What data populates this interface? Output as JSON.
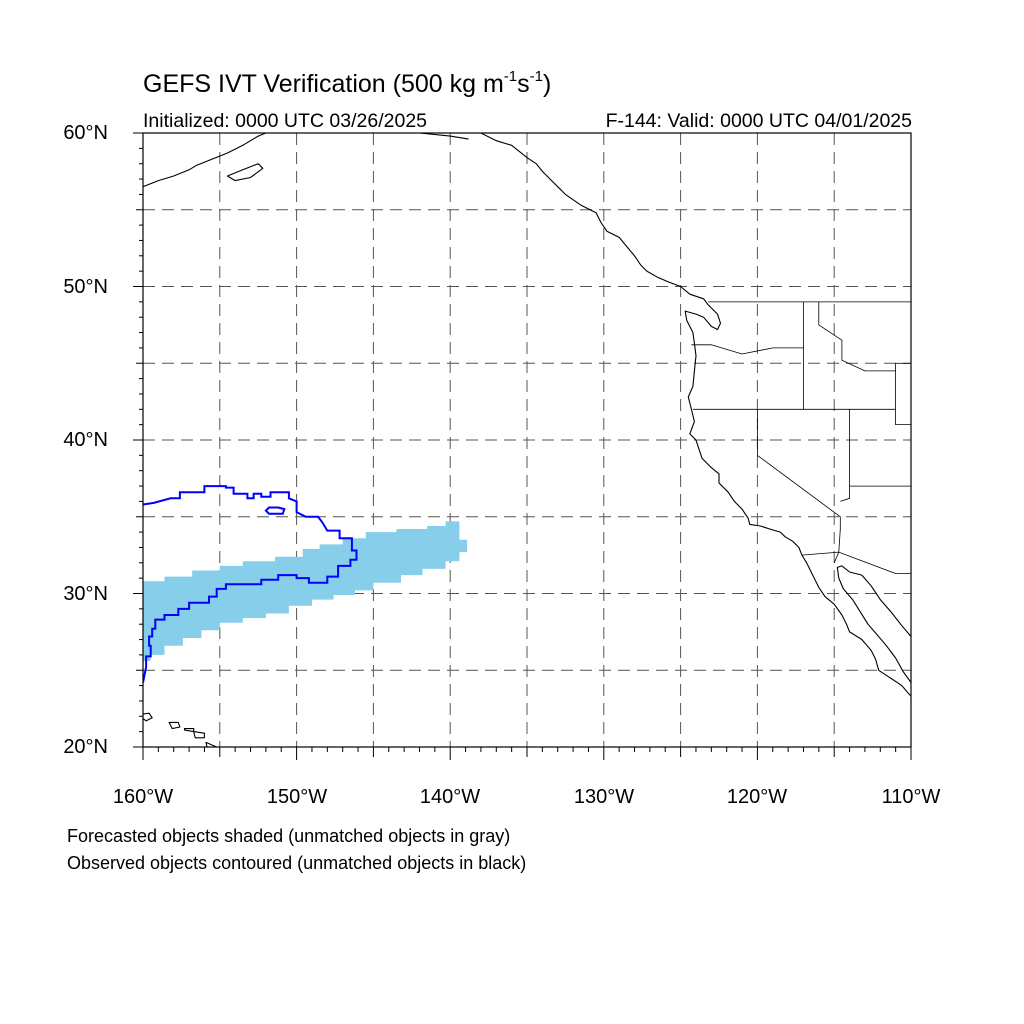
{
  "title": {
    "main": "GEFS IVT Verification (500 kg m",
    "exp1": "-1",
    "mid": "s",
    "exp2": "-1",
    "end": ")"
  },
  "initialized": "Initialized: 0000 UTC 03/26/2025",
  "valid": "F-144: Valid: 0000 UTC 04/01/2025",
  "lat_labels": [
    "60°N",
    "50°N",
    "40°N",
    "30°N",
    "20°N"
  ],
  "lon_labels": [
    "160°W",
    "150°W",
    "140°W",
    "130°W",
    "120°W",
    "110°W"
  ],
  "captions": [
    "Forecasted objects shaded (unmatched objects in gray)",
    "Observed objects contoured (unmatched objects in black)"
  ],
  "map": {
    "lon_range": [
      -160,
      -110
    ],
    "lat_range": [
      20,
      60
    ],
    "grid_lons": [
      -155,
      -150,
      -145,
      -140,
      -135,
      -130,
      -125,
      -120,
      -115
    ],
    "grid_lats": [
      25,
      30,
      35,
      40,
      45,
      50,
      55
    ],
    "forecast_color": "#87ceeb",
    "observed_color": "#0000ff",
    "coast_color": "#000000",
    "forecast_object": [
      [
        -160,
        30.8
      ],
      [
        -158.6,
        30.8
      ],
      [
        -158.6,
        31.1
      ],
      [
        -156.8,
        31.1
      ],
      [
        -156.8,
        31.5
      ],
      [
        -155,
        31.5
      ],
      [
        -155,
        31.8
      ],
      [
        -153.5,
        31.8
      ],
      [
        -153.5,
        32.1
      ],
      [
        -151.4,
        32.1
      ],
      [
        -151.4,
        32.4
      ],
      [
        -149.6,
        32.4
      ],
      [
        -149.6,
        32.9
      ],
      [
        -148.5,
        32.9
      ],
      [
        -148.5,
        33.2
      ],
      [
        -147,
        33.2
      ],
      [
        -147,
        33.6
      ],
      [
        -145.5,
        33.6
      ],
      [
        -145.5,
        34.0
      ],
      [
        -143.5,
        34.0
      ],
      [
        -143.5,
        34.2
      ],
      [
        -141.5,
        34.2
      ],
      [
        -141.5,
        34.4
      ],
      [
        -140.3,
        34.4
      ],
      [
        -140.3,
        34.7
      ],
      [
        -139.4,
        34.7
      ],
      [
        -139.4,
        33.5
      ],
      [
        -138.9,
        33.5
      ],
      [
        -138.9,
        32.7
      ],
      [
        -139.4,
        32.7
      ],
      [
        -139.4,
        32.1
      ],
      [
        -140.3,
        32.1
      ],
      [
        -140.3,
        31.6
      ],
      [
        -141.8,
        31.6
      ],
      [
        -141.8,
        31.2
      ],
      [
        -143.2,
        31.2
      ],
      [
        -143.2,
        30.7
      ],
      [
        -145,
        30.7
      ],
      [
        -145,
        30.2
      ],
      [
        -146.2,
        30.2
      ],
      [
        -146.2,
        29.9
      ],
      [
        -147.6,
        29.9
      ],
      [
        -147.6,
        29.6
      ],
      [
        -149,
        29.6
      ],
      [
        -149,
        29.2
      ],
      [
        -150.5,
        29.2
      ],
      [
        -150.5,
        28.7
      ],
      [
        -152,
        28.7
      ],
      [
        -152,
        28.4
      ],
      [
        -153.5,
        28.4
      ],
      [
        -153.5,
        28.1
      ],
      [
        -155,
        28.1
      ],
      [
        -155,
        27.6
      ],
      [
        -156.2,
        27.6
      ],
      [
        -156.2,
        27.1
      ],
      [
        -157.4,
        27.1
      ],
      [
        -157.4,
        26.6
      ],
      [
        -158.6,
        26.6
      ],
      [
        -158.6,
        26.0
      ],
      [
        -159.5,
        26.0
      ],
      [
        -159.5,
        25.6
      ],
      [
        -160,
        25.6
      ]
    ],
    "observed_object": [
      [
        -160,
        35.8
      ],
      [
        -159.3,
        35.9
      ],
      [
        -158.2,
        36.2
      ],
      [
        -157.6,
        36.2
      ],
      [
        -157.6,
        36.6
      ],
      [
        -156,
        36.6
      ],
      [
        -156,
        37.0
      ],
      [
        -154.6,
        37.0
      ],
      [
        -154.6,
        36.9
      ],
      [
        -154.1,
        36.9
      ],
      [
        -154.1,
        36.5
      ],
      [
        -153.2,
        36.5
      ],
      [
        -153.2,
        36.2
      ],
      [
        -152.8,
        36.2
      ],
      [
        -152.8,
        36.5
      ],
      [
        -152.3,
        36.5
      ],
      [
        -152.3,
        36.3
      ],
      [
        -151.7,
        36.3
      ],
      [
        -151.7,
        36.6
      ],
      [
        -151,
        36.6
      ],
      [
        -150.5,
        36.6
      ],
      [
        -150.5,
        36.2
      ],
      [
        -150,
        36.0
      ],
      [
        -150,
        35.3
      ],
      [
        -149.4,
        35.0
      ],
      [
        -148.6,
        35.0
      ],
      [
        -148.3,
        34.6
      ],
      [
        -148,
        34.1
      ],
      [
        -147.2,
        34.1
      ],
      [
        -147.2,
        33.6
      ],
      [
        -146.4,
        33.6
      ],
      [
        -146.4,
        32.8
      ],
      [
        -146.1,
        32.8
      ],
      [
        -146.1,
        32.2
      ],
      [
        -146.5,
        32.2
      ],
      [
        -146.5,
        31.8
      ],
      [
        -147.3,
        31.8
      ],
      [
        -147.3,
        31.1
      ],
      [
        -148.0,
        31.1
      ],
      [
        -148.0,
        30.7
      ],
      [
        -149.2,
        30.7
      ],
      [
        -149.2,
        31.0
      ],
      [
        -150,
        31.0
      ],
      [
        -150,
        31.2
      ],
      [
        -151.2,
        31.2
      ],
      [
        -151.2,
        30.9
      ],
      [
        -152.3,
        30.9
      ],
      [
        -152.3,
        30.6
      ],
      [
        -154.6,
        30.6
      ],
      [
        -154.6,
        30.3
      ],
      [
        -155.2,
        30.3
      ],
      [
        -155.2,
        29.8
      ],
      [
        -155.7,
        29.8
      ],
      [
        -155.7,
        29.4
      ],
      [
        -157.0,
        29.4
      ],
      [
        -157.0,
        29.0
      ],
      [
        -157.7,
        29.0
      ],
      [
        -157.7,
        28.6
      ],
      [
        -158.6,
        28.6
      ],
      [
        -158.6,
        28.3
      ],
      [
        -159.2,
        28.3
      ],
      [
        -159.2,
        27.7
      ],
      [
        -159.4,
        27.7
      ],
      [
        -159.4,
        27.2
      ],
      [
        -159.6,
        27.2
      ],
      [
        -159.6,
        26.6
      ],
      [
        -159.5,
        26.6
      ],
      [
        -159.5,
        25.9
      ],
      [
        -159.8,
        25.9
      ],
      [
        -159.8,
        25.2
      ],
      [
        -160,
        24.2
      ]
    ],
    "observed_hole": [
      [
        -151.8,
        35.6
      ],
      [
        -151.2,
        35.6
      ],
      [
        -150.8,
        35.5
      ],
      [
        -150.9,
        35.2
      ],
      [
        -151.8,
        35.2
      ],
      [
        -152.0,
        35.4
      ]
    ],
    "coastline_north_america": [
      [
        -138,
        60
      ],
      [
        -137,
        59.5
      ],
      [
        -136,
        59.2
      ],
      [
        -135.5,
        58.8
      ],
      [
        -135,
        58.4
      ],
      [
        -134.4,
        58
      ],
      [
        -134,
        57.5
      ],
      [
        -133.5,
        57
      ],
      [
        -133,
        56.5
      ],
      [
        -132.5,
        56
      ],
      [
        -131.5,
        55.3
      ],
      [
        -130.5,
        54.8
      ],
      [
        -130.2,
        54.2
      ],
      [
        -129.8,
        53.6
      ],
      [
        -129,
        53.2
      ],
      [
        -128.5,
        52.6
      ],
      [
        -128,
        52
      ],
      [
        -127.6,
        51.4
      ],
      [
        -127.2,
        51
      ],
      [
        -126.5,
        50.6
      ],
      [
        -125.8,
        50.3
      ],
      [
        -125,
        50
      ],
      [
        -124.4,
        49.5
      ],
      [
        -123.5,
        49.2
      ],
      [
        -123.2,
        48.8
      ],
      [
        -122.6,
        48.2
      ],
      [
        -122.4,
        47.6
      ],
      [
        -122.6,
        47.2
      ],
      [
        -123.0,
        47.4
      ],
      [
        -123.5,
        48.0
      ],
      [
        -124.0,
        48.2
      ],
      [
        -124.7,
        48.4
      ],
      [
        -124.6,
        47.8
      ],
      [
        -124.2,
        47.0
      ],
      [
        -124.1,
        46.3
      ],
      [
        -124.0,
        45.5
      ],
      [
        -124.1,
        44.5
      ],
      [
        -124.2,
        43.5
      ],
      [
        -124.5,
        42.8
      ],
      [
        -124.3,
        42.0
      ],
      [
        -124.1,
        41.2
      ],
      [
        -124.4,
        40.4
      ],
      [
        -124.0,
        40.0
      ],
      [
        -123.8,
        39.4
      ],
      [
        -123.6,
        38.8
      ],
      [
        -123.0,
        38.2
      ],
      [
        -122.5,
        37.8
      ],
      [
        -122.5,
        37.2
      ],
      [
        -121.9,
        36.6
      ],
      [
        -121.5,
        36.0
      ],
      [
        -121.0,
        35.5
      ],
      [
        -120.6,
        34.9
      ],
      [
        -120.5,
        34.5
      ],
      [
        -119.8,
        34.4
      ],
      [
        -119.2,
        34.2
      ],
      [
        -118.5,
        34.0
      ],
      [
        -118.2,
        33.7
      ],
      [
        -117.7,
        33.4
      ],
      [
        -117.3,
        33.0
      ],
      [
        -117.1,
        32.5
      ],
      [
        -116.8,
        32.0
      ],
      [
        -116.6,
        31.6
      ],
      [
        -116.3,
        31.0
      ],
      [
        -116.0,
        30.4
      ],
      [
        -115.6,
        29.8
      ],
      [
        -115.0,
        29.3
      ],
      [
        -114.5,
        28.6
      ],
      [
        -114.2,
        28.0
      ],
      [
        -114.0,
        27.5
      ],
      [
        -113.2,
        27.0
      ],
      [
        -112.6,
        26.3
      ],
      [
        -112.3,
        25.7
      ],
      [
        -112.1,
        25.0
      ],
      [
        -111.5,
        24.6
      ],
      [
        -110.6,
        24.0
      ],
      [
        -110.0,
        23.3
      ]
    ],
    "coastline_baja_east": [
      [
        -110.0,
        24.2
      ],
      [
        -110.5,
        24.9
      ],
      [
        -111.0,
        25.8
      ],
      [
        -111.6,
        26.6
      ],
      [
        -112.2,
        27.3
      ],
      [
        -112.8,
        28.0
      ],
      [
        -113.3,
        28.8
      ],
      [
        -113.8,
        29.6
      ],
      [
        -114.4,
        30.3
      ],
      [
        -114.7,
        31.0
      ],
      [
        -114.8,
        31.7
      ],
      [
        -114.5,
        31.8
      ],
      [
        -114.0,
        31.4
      ],
      [
        -113.2,
        31.2
      ],
      [
        -112.6,
        30.5
      ],
      [
        -112.0,
        29.6
      ],
      [
        -111.3,
        28.8
      ],
      [
        -110.6,
        27.9
      ],
      [
        -110.0,
        27.2
      ]
    ],
    "coastline_alaska": [
      [
        -160,
        56.5
      ],
      [
        -159,
        56.9
      ],
      [
        -158,
        57.2
      ],
      [
        -157,
        57.6
      ],
      [
        -156.5,
        57.9
      ],
      [
        -155.5,
        58.3
      ],
      [
        -154.5,
        58.7
      ],
      [
        -153.5,
        59.2
      ],
      [
        -152.5,
        59.8
      ],
      [
        -152,
        60
      ]
    ],
    "kodiak": [
      [
        -154.5,
        57.2
      ],
      [
        -153.5,
        57.6
      ],
      [
        -152.5,
        58.0
      ],
      [
        -152.2,
        57.7
      ],
      [
        -153.0,
        57.1
      ],
      [
        -154.0,
        56.9
      ],
      [
        -154.5,
        57.2
      ]
    ],
    "alaska_east": [
      [
        -149,
        60
      ],
      [
        -147.5,
        60.3
      ],
      [
        -146,
        60.3
      ],
      [
        -144,
        60
      ],
      [
        -142,
        60
      ],
      [
        -140,
        59.8
      ],
      [
        -138.8,
        59.6
      ]
    ],
    "hawaii": [
      [
        [
          -160.3,
          22.1
        ],
        [
          -159.6,
          22.2
        ],
        [
          -159.4,
          21.9
        ],
        [
          -159.8,
          21.7
        ],
        [
          -160.3,
          22.1
        ]
      ],
      [
        [
          -158.3,
          21.6
        ],
        [
          -157.7,
          21.6
        ],
        [
          -157.6,
          21.3
        ],
        [
          -158.1,
          21.2
        ],
        [
          -158.3,
          21.6
        ]
      ],
      [
        [
          -157.3,
          21.2
        ],
        [
          -156.7,
          21.2
        ],
        [
          -156.7,
          21.0
        ],
        [
          -157.3,
          21.1
        ],
        [
          -157.3,
          21.2
        ]
      ],
      [
        [
          -156.7,
          21.0
        ],
        [
          -156.0,
          20.9
        ],
        [
          -156.0,
          20.6
        ],
        [
          -156.6,
          20.6
        ],
        [
          -156.7,
          21.0
        ]
      ],
      [
        [
          -155.9,
          20.3
        ],
        [
          -155.2,
          20.0
        ],
        [
          -155.0,
          19.6
        ],
        [
          -155.7,
          19.4
        ],
        [
          -155.9,
          20.3
        ]
      ]
    ],
    "borders": [
      [
        [
          -123.2,
          49.0
        ],
        [
          -110,
          49.0
        ]
      ],
      [
        [
          -124.3,
          46.2
        ],
        [
          -123.0,
          46.2
        ],
        [
          -121.0,
          45.6
        ],
        [
          -119.0,
          46.0
        ],
        [
          -117.0,
          46.0
        ]
      ],
      [
        [
          -117.0,
          49.0
        ],
        [
          -117.0,
          42.0
        ]
      ],
      [
        [
          -124.2,
          42.0
        ],
        [
          -111.0,
          42.0
        ]
      ],
      [
        [
          -116.0,
          49.0
        ],
        [
          -116.0,
          47.5
        ],
        [
          -114.5,
          46.5
        ],
        [
          -114.5,
          45.2
        ],
        [
          -113.0,
          44.5
        ],
        [
          -111.0,
          44.5
        ]
      ],
      [
        [
          -111.0,
          45.0
        ],
        [
          -110,
          45.0
        ]
      ],
      [
        [
          -111.0,
          45.0
        ],
        [
          -111.0,
          41.0
        ],
        [
          -110,
          41.0
        ]
      ],
      [
        [
          -120.0,
          42.0
        ],
        [
          -120.0,
          39.0
        ],
        [
          -114.6,
          35.0
        ],
        [
          -114.6,
          34.2
        ],
        [
          -114.7,
          32.7
        ]
      ],
      [
        [
          -114.0,
          42.0
        ],
        [
          -114.0,
          37.0
        ],
        [
          -110,
          37.0
        ]
      ],
      [
        [
          -114.0,
          37.0
        ],
        [
          -114.0,
          36.2
        ],
        [
          -114.6,
          36.0
        ]
      ],
      [
        [
          -117.1,
          32.5
        ],
        [
          -114.7,
          32.7
        ],
        [
          -111.0,
          31.3
        ],
        [
          -110,
          31.3
        ]
      ],
      [
        [
          -114.7,
          32.7
        ],
        [
          -115.0,
          32.0
        ]
      ]
    ]
  }
}
